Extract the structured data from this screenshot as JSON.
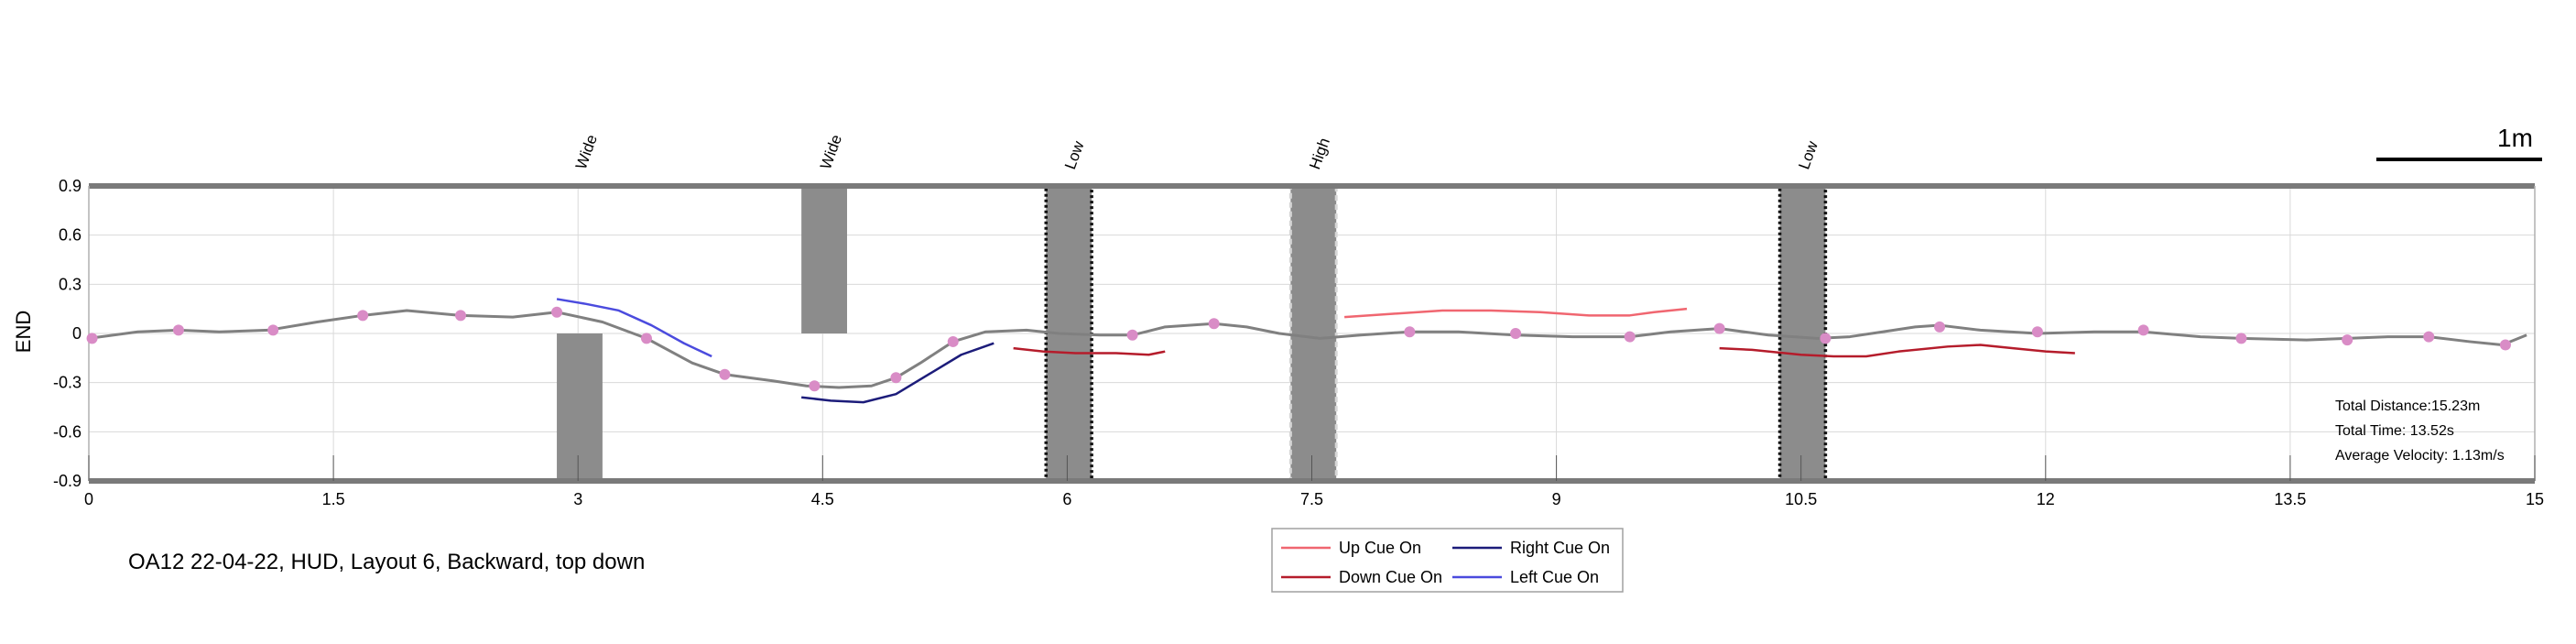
{
  "chart_data": {
    "type": "line",
    "title": "OA12 22-04-22, HUD, Layout 6, Backward, top down",
    "xlabel": "",
    "ylabel": "END",
    "xlim": [
      0,
      15
    ],
    "ylim": [
      -0.9,
      0.9
    ],
    "xticks": [
      0,
      1.5,
      3,
      4.5,
      6,
      7.5,
      9,
      10.5,
      12,
      13.5,
      15
    ],
    "xtick_labels": [
      "0",
      "1.5",
      "3",
      "4.5",
      "6",
      "7.5",
      "9",
      "10.5",
      "12",
      "13.5",
      "15"
    ],
    "yticks": [
      0.9,
      0.6,
      0.3,
      0,
      -0.3,
      -0.6,
      -0.9
    ],
    "ytick_labels": [
      "0.9",
      "0.6",
      "0.3",
      "0",
      "-0.3",
      "-0.6",
      "-0.9"
    ],
    "grid": true,
    "legend_position": "bottom-center",
    "scale_bar_label": "1m",
    "stats": [
      "Total Distance:15.23m",
      "Total Time: 13.52s",
      "Average Velocity: 1.13m/s"
    ],
    "obstacles": [
      {
        "label": "Wide",
        "x0": 2.87,
        "x1": 3.15,
        "y0": -0.9,
        "y1": 0.0,
        "style": "plain"
      },
      {
        "label": "Wide",
        "x0": 4.37,
        "x1": 4.65,
        "y0": 0.0,
        "y1": 0.9,
        "style": "plain"
      },
      {
        "label": "Low",
        "x0": 5.87,
        "x1": 6.15,
        "y0": -0.9,
        "y1": 0.9,
        "style": "dark-dotted"
      },
      {
        "label": "High",
        "x0": 7.37,
        "x1": 7.65,
        "y0": -0.9,
        "y1": 0.9,
        "style": "light-dashed"
      },
      {
        "label": "Low",
        "x0": 10.37,
        "x1": 10.65,
        "y0": -0.9,
        "y1": 0.9,
        "style": "dark-dotted"
      }
    ],
    "trajectory": {
      "name": "",
      "color": "#808080",
      "x": [
        0,
        0.3,
        0.55,
        0.8,
        1.1,
        1.4,
        1.68,
        1.95,
        2.28,
        2.6,
        2.87,
        3.15,
        3.42,
        3.7,
        3.9,
        4.2,
        4.4,
        4.6,
        4.8,
        4.95,
        5.1,
        5.3,
        5.5,
        5.75,
        5.95,
        6.2,
        6.4,
        6.6,
        6.9,
        7.1,
        7.3,
        7.55,
        7.8,
        8.1,
        8.4,
        8.75,
        9.1,
        9.45,
        9.7,
        10.0,
        10.3,
        10.6,
        10.8,
        11.0,
        11.2,
        11.35,
        11.6,
        11.95,
        12.3,
        12.6,
        12.95,
        13.2,
        13.6,
        13.85,
        14.1,
        14.35,
        14.6,
        14.8,
        14.95
      ],
      "y": [
        -0.03,
        0.01,
        0.02,
        0.01,
        0.02,
        0.07,
        0.11,
        0.14,
        0.11,
        0.1,
        0.13,
        0.07,
        -0.03,
        -0.18,
        -0.25,
        -0.29,
        -0.32,
        -0.33,
        -0.32,
        -0.27,
        -0.18,
        -0.05,
        0.01,
        0.02,
        0.0,
        -0.01,
        -0.01,
        0.04,
        0.06,
        0.04,
        0.0,
        -0.03,
        -0.01,
        0.01,
        0.01,
        -0.01,
        -0.02,
        -0.02,
        0.01,
        0.03,
        -0.01,
        -0.03,
        -0.02,
        0.01,
        0.04,
        0.05,
        0.02,
        0.0,
        0.01,
        0.01,
        -0.02,
        -0.03,
        -0.04,
        -0.03,
        -0.02,
        -0.02,
        -0.05,
        -0.07,
        -0.01
      ]
    },
    "markers": {
      "color": "#d98cc6",
      "x": [
        0.02,
        0.55,
        1.13,
        1.68,
        2.28,
        2.87,
        3.42,
        3.9,
        4.45,
        4.95,
        5.3,
        6.4,
        6.9,
        8.1,
        8.75,
        9.45,
        10.0,
        10.65,
        11.35,
        11.95,
        12.6,
        13.2,
        13.85,
        14.35,
        14.82
      ],
      "y": [
        -0.03,
        0.02,
        0.02,
        0.11,
        0.11,
        0.13,
        -0.03,
        -0.25,
        -0.32,
        -0.27,
        -0.05,
        -0.01,
        0.06,
        0.01,
        0.0,
        -0.02,
        0.03,
        -0.03,
        0.04,
        0.01,
        0.02,
        -0.03,
        -0.04,
        -0.02,
        -0.07
      ]
    },
    "series": [
      {
        "name": "Up Cue On",
        "color": "#f06670",
        "x": [
          7.7,
          8.0,
          8.3,
          8.6,
          8.9,
          9.2,
          9.45,
          9.6,
          9.8
        ],
        "y": [
          0.1,
          0.12,
          0.14,
          0.14,
          0.13,
          0.11,
          0.11,
          0.13,
          0.15
        ]
      },
      {
        "name": "Down Cue On",
        "color": "#b51c2b",
        "x": [
          5.67,
          5.85,
          6.05,
          6.3,
          6.5,
          6.6
        ],
        "y": [
          -0.09,
          -0.11,
          -0.12,
          -0.12,
          -0.13,
          -0.11
        ]
      },
      {
        "name": "Down Cue On",
        "color": "#b51c2b",
        "x": [
          10.0,
          10.2,
          10.5,
          10.7,
          10.9,
          11.1,
          11.4,
          11.6,
          11.8,
          12.0,
          12.18
        ],
        "y": [
          -0.09,
          -0.1,
          -0.13,
          -0.14,
          -0.14,
          -0.11,
          -0.08,
          -0.07,
          -0.09,
          -0.11,
          -0.12
        ]
      },
      {
        "name": "Right Cue On",
        "color": "#1c1c7a",
        "x": [
          4.37,
          4.55,
          4.75,
          4.95,
          5.15,
          5.35,
          5.55
        ],
        "y": [
          -0.39,
          -0.41,
          -0.42,
          -0.37,
          -0.25,
          -0.13,
          -0.06
        ]
      },
      {
        "name": "Left Cue On",
        "color": "#4b4bde",
        "x": [
          2.87,
          3.05,
          3.25,
          3.45,
          3.65,
          3.82
        ],
        "y": [
          0.21,
          0.18,
          0.14,
          0.05,
          -0.06,
          -0.14
        ]
      }
    ],
    "legend": [
      {
        "label": "Up Cue On",
        "color": "#f06670"
      },
      {
        "label": "Right Cue On",
        "color": "#1c1c7a"
      },
      {
        "label": "Down Cue On",
        "color": "#b51c2b"
      },
      {
        "label": "Left Cue On",
        "color": "#4b4bde"
      }
    ]
  }
}
